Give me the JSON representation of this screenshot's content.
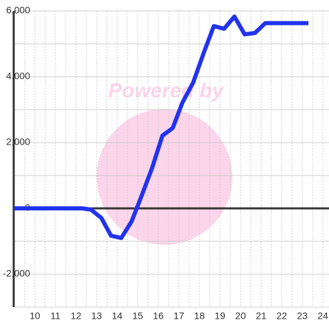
{
  "chart_data": {
    "type": "line",
    "watermark": "Powered by",
    "x": [
      9,
      12.3,
      12.73,
      13.23,
      13.7,
      14.2,
      14.7,
      15.2,
      15.7,
      16.2,
      16.7,
      17.17,
      17.7,
      18.2,
      18.7,
      19.2,
      19.7,
      20.2,
      20.7,
      21.2,
      23.3
    ],
    "series": [
      {
        "color": "#2233ee",
        "values": [
          0,
          0,
          -40,
          -290,
          -830,
          -900,
          -400,
          400,
          1230,
          2210,
          2440,
          3210,
          3830,
          4710,
          5540,
          5460,
          5830,
          5290,
          5330,
          5630,
          5630
        ]
      }
    ],
    "xlim": [
      8.97,
      24.3
    ],
    "xticks": [
      10,
      11,
      12,
      13,
      14,
      15,
      16,
      17,
      18,
      19,
      20,
      21,
      22,
      23,
      24
    ],
    "ylim": [
      -3000,
      6000
    ],
    "yticks": [
      {
        "value": -2000,
        "label": "-2,000"
      },
      0,
      {
        "value": 2000,
        "label": "2,000"
      },
      {
        "value": 4000,
        "label": "4,000"
      },
      {
        "value": 6000,
        "label": "6,000"
      }
    ],
    "grid": true
  }
}
